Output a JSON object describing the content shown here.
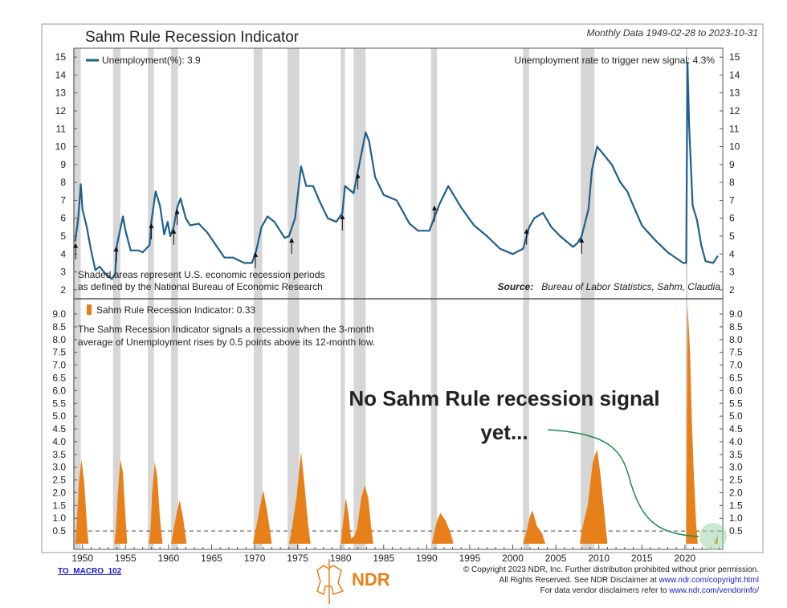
{
  "header": {
    "title": "Sahm Rule Recession Indicator",
    "subtitle": "Monthly Data 1949-02-28 to 2023-10-31"
  },
  "footer": {
    "code": "TO_MACRO_102",
    "logo_text": "NDR",
    "copyright": "© Copyright 2023 NDR, Inc. Further distribution prohibited without prior permission.",
    "rights_prefix": "All Rights Reserved. See NDR Disclaimer at ",
    "rights_link": "www.ndr.com/copyright.html",
    "vendor_prefix": "For data vendor disclaimers refer to ",
    "vendor_link": "www.ndr.com/vendorinfo/"
  },
  "chart_data": [
    {
      "type": "line",
      "panel": "top",
      "legend": "Unemployment(%): 3.9",
      "color": "#1f5f8b",
      "annotation_right": "Unemployment rate to trigger new signal: 4.3%",
      "note_lines": [
        "Shaded areas represent U.S. economic recession periods",
        "as defined by the National Bureau of Economic Research"
      ],
      "source_label": "Source:",
      "source": "Bureau of Labor Statistics, Sahm, Claudia",
      "ylim": [
        1.5,
        15.5
      ],
      "yticks": [
        2,
        3,
        4,
        5,
        6,
        7,
        8,
        9,
        10,
        11,
        12,
        13,
        14,
        15
      ],
      "signal_arrows": [
        1949.2,
        1953.9,
        1958.0,
        1960.6,
        1961.0,
        1970.1,
        1974.3,
        1980.2,
        1982.0,
        1990.9,
        2001.6,
        2008.0
      ],
      "points": [
        [
          1949.15,
          4.7
        ],
        [
          1949.5,
          6.0
        ],
        [
          1949.8,
          7.9
        ],
        [
          1950.0,
          6.5
        ],
        [
          1950.5,
          5.5
        ],
        [
          1951.0,
          4.2
        ],
        [
          1951.5,
          3.1
        ],
        [
          1952.0,
          3.3
        ],
        [
          1952.5,
          3.0
        ],
        [
          1953.4,
          2.6
        ],
        [
          1953.8,
          2.9
        ],
        [
          1954.0,
          4.5
        ],
        [
          1954.7,
          6.1
        ],
        [
          1955.0,
          5.3
        ],
        [
          1955.6,
          4.2
        ],
        [
          1956.5,
          4.2
        ],
        [
          1957.0,
          4.1
        ],
        [
          1957.8,
          4.5
        ],
        [
          1958.0,
          5.8
        ],
        [
          1958.5,
          7.5
        ],
        [
          1959.0,
          6.7
        ],
        [
          1959.5,
          5.1
        ],
        [
          1959.9,
          5.8
        ],
        [
          1960.2,
          5.0
        ],
        [
          1960.6,
          5.5
        ],
        [
          1961.0,
          6.6
        ],
        [
          1961.4,
          7.1
        ],
        [
          1962.0,
          6.0
        ],
        [
          1962.5,
          5.6
        ],
        [
          1963.5,
          5.7
        ],
        [
          1964.5,
          5.2
        ],
        [
          1965.5,
          4.5
        ],
        [
          1966.5,
          3.8
        ],
        [
          1967.5,
          3.8
        ],
        [
          1968.8,
          3.5
        ],
        [
          1969.7,
          3.5
        ],
        [
          1970.2,
          4.2
        ],
        [
          1970.8,
          5.5
        ],
        [
          1971.5,
          6.1
        ],
        [
          1972.3,
          5.8
        ],
        [
          1973.5,
          4.9
        ],
        [
          1974.0,
          5.0
        ],
        [
          1974.7,
          6.0
        ],
        [
          1975.4,
          8.9
        ],
        [
          1976.0,
          7.8
        ],
        [
          1976.8,
          7.8
        ],
        [
          1977.5,
          7.0
        ],
        [
          1978.5,
          6.0
        ],
        [
          1979.5,
          5.8
        ],
        [
          1980.2,
          6.3
        ],
        [
          1980.5,
          7.8
        ],
        [
          1981.5,
          7.4
        ],
        [
          1982.0,
          8.6
        ],
        [
          1982.9,
          10.8
        ],
        [
          1983.3,
          10.3
        ],
        [
          1984.0,
          8.3
        ],
        [
          1985.0,
          7.3
        ],
        [
          1986.5,
          7.0
        ],
        [
          1988.0,
          5.7
        ],
        [
          1989.0,
          5.3
        ],
        [
          1990.3,
          5.3
        ],
        [
          1991.5,
          6.8
        ],
        [
          1992.5,
          7.8
        ],
        [
          1994.0,
          6.6
        ],
        [
          1995.5,
          5.6
        ],
        [
          1997.0,
          5.0
        ],
        [
          1998.5,
          4.3
        ],
        [
          2000.0,
          4.0
        ],
        [
          2001.2,
          4.3
        ],
        [
          2001.9,
          5.5
        ],
        [
          2002.5,
          6.0
        ],
        [
          2003.5,
          6.3
        ],
        [
          2004.5,
          5.5
        ],
        [
          2005.5,
          5.0
        ],
        [
          2007.0,
          4.4
        ],
        [
          2007.5,
          4.6
        ],
        [
          2008.0,
          5.0
        ],
        [
          2008.8,
          6.5
        ],
        [
          2009.2,
          8.7
        ],
        [
          2009.8,
          10.0
        ],
        [
          2010.5,
          9.6
        ],
        [
          2011.5,
          9.0
        ],
        [
          2012.5,
          8.0
        ],
        [
          2013.3,
          7.5
        ],
        [
          2014.0,
          6.7
        ],
        [
          2015.0,
          5.6
        ],
        [
          2016.5,
          4.8
        ],
        [
          2018.0,
          4.1
        ],
        [
          2019.8,
          3.5
        ],
        [
          2020.15,
          3.5
        ],
        [
          2020.3,
          14.7
        ],
        [
          2020.5,
          11.1
        ],
        [
          2020.9,
          6.7
        ],
        [
          2021.4,
          5.9
        ],
        [
          2021.9,
          4.5
        ],
        [
          2022.4,
          3.6
        ],
        [
          2023.3,
          3.5
        ],
        [
          2023.7,
          3.8
        ],
        [
          2023.83,
          3.9
        ]
      ]
    },
    {
      "type": "area",
      "panel": "bottom",
      "legend": "Sahm Rule Recession Indicator: 0.33",
      "color": "#e8801a",
      "note_lines": [
        "The Sahm Recession Indicator signals a recession when the 3-month",
        "average of Unemployment rises by 0.5 points above its 12-month low."
      ],
      "threshold": 0.5,
      "ylim": [
        0,
        9.6
      ],
      "yticks": [
        0.5,
        1.0,
        1.5,
        2.0,
        2.5,
        3.0,
        3.5,
        4.0,
        4.5,
        5.0,
        5.5,
        6.0,
        6.5,
        7.0,
        7.5,
        8.0,
        8.5,
        9.0
      ],
      "events": [
        [
          [
            1949.15,
            0
          ],
          [
            1949.3,
            0.6
          ],
          [
            1949.6,
            2.5
          ],
          [
            1949.9,
            3.3
          ],
          [
            1950.2,
            2.4
          ],
          [
            1950.5,
            0.8
          ],
          [
            1950.7,
            0
          ]
        ],
        [
          [
            1953.7,
            0
          ],
          [
            1953.9,
            0.6
          ],
          [
            1954.1,
            2.0
          ],
          [
            1954.4,
            3.3
          ],
          [
            1954.7,
            2.8
          ],
          [
            1955.0,
            1.0
          ],
          [
            1955.2,
            0
          ]
        ],
        [
          [
            1957.7,
            0
          ],
          [
            1957.9,
            0.5
          ],
          [
            1958.1,
            2.0
          ],
          [
            1958.4,
            3.2
          ],
          [
            1958.7,
            2.6
          ],
          [
            1959.0,
            1.0
          ],
          [
            1959.3,
            0
          ]
        ],
        [
          [
            1960.3,
            0
          ],
          [
            1960.6,
            0.6
          ],
          [
            1961.0,
            1.3
          ],
          [
            1961.3,
            1.7
          ],
          [
            1961.7,
            1.0
          ],
          [
            1962.1,
            0
          ]
        ],
        [
          [
            1969.8,
            0
          ],
          [
            1970.1,
            0.5
          ],
          [
            1970.6,
            1.4
          ],
          [
            1971.0,
            2.1
          ],
          [
            1971.4,
            1.4
          ],
          [
            1971.8,
            0.5
          ],
          [
            1972.0,
            0
          ]
        ],
        [
          [
            1974.0,
            0
          ],
          [
            1974.3,
            0.5
          ],
          [
            1974.9,
            1.9
          ],
          [
            1975.4,
            3.6
          ],
          [
            1975.8,
            2.3
          ],
          [
            1976.2,
            0.8
          ],
          [
            1976.5,
            0
          ]
        ],
        [
          [
            1980.0,
            0
          ],
          [
            1980.2,
            0.6
          ],
          [
            1980.6,
            1.8
          ],
          [
            1980.9,
            1.2
          ],
          [
            1981.2,
            0.2
          ],
          [
            1981.6,
            0.3
          ],
          [
            1981.9,
            0.6
          ],
          [
            1982.4,
            1.8
          ],
          [
            1982.8,
            2.3
          ],
          [
            1983.2,
            1.8
          ],
          [
            1983.5,
            0.8
          ],
          [
            1983.8,
            0
          ]
        ],
        [
          [
            1990.6,
            0
          ],
          [
            1990.9,
            0.5
          ],
          [
            1991.3,
            1.0
          ],
          [
            1991.6,
            1.2
          ],
          [
            1992.2,
            0.9
          ],
          [
            1992.8,
            0.4
          ],
          [
            1993.1,
            0
          ]
        ],
        [
          [
            2001.2,
            0
          ],
          [
            2001.6,
            0.5
          ],
          [
            2002.0,
            1.1
          ],
          [
            2002.3,
            1.3
          ],
          [
            2002.8,
            0.7
          ],
          [
            2003.4,
            0.4
          ],
          [
            2003.8,
            0
          ]
        ],
        [
          [
            2007.8,
            0
          ],
          [
            2008.0,
            0.5
          ],
          [
            2008.7,
            1.5
          ],
          [
            2009.3,
            3.2
          ],
          [
            2009.8,
            3.7
          ],
          [
            2010.2,
            2.7
          ],
          [
            2010.7,
            1.0
          ],
          [
            2011.0,
            0
          ]
        ],
        [
          [
            2020.15,
            0
          ],
          [
            2020.3,
            9.4
          ],
          [
            2020.6,
            7.5
          ],
          [
            2020.8,
            5.0
          ],
          [
            2021.0,
            3.0
          ],
          [
            2021.3,
            0.8
          ],
          [
            2021.5,
            0
          ]
        ],
        [
          [
            2023.4,
            0
          ],
          [
            2023.6,
            0.2
          ],
          [
            2023.83,
            0.33
          ],
          [
            2023.84,
            0
          ]
        ]
      ],
      "callout": [
        "No Sahm Rule recession signal",
        "yet..."
      ],
      "callout_color": "#1e8a4a"
    }
  ],
  "x_axis": {
    "xlim": [
      1949.0,
      2024.4
    ],
    "ticks": [
      1950,
      1955,
      1960,
      1965,
      1970,
      1975,
      1980,
      1985,
      1990,
      1995,
      2000,
      2005,
      2010,
      2015,
      2020
    ]
  },
  "recessions": [
    [
      1948.9,
      1949.8
    ],
    [
      1953.55,
      1954.4
    ],
    [
      1957.6,
      1958.3
    ],
    [
      1960.3,
      1961.1
    ],
    [
      1969.9,
      1970.9
    ],
    [
      1973.85,
      1975.2
    ],
    [
      1980.0,
      1980.5
    ],
    [
      1981.5,
      1982.9
    ],
    [
      1990.5,
      1991.2
    ],
    [
      2001.2,
      2001.9
    ],
    [
      2007.9,
      2009.5
    ],
    [
      2020.1,
      2020.3
    ]
  ]
}
